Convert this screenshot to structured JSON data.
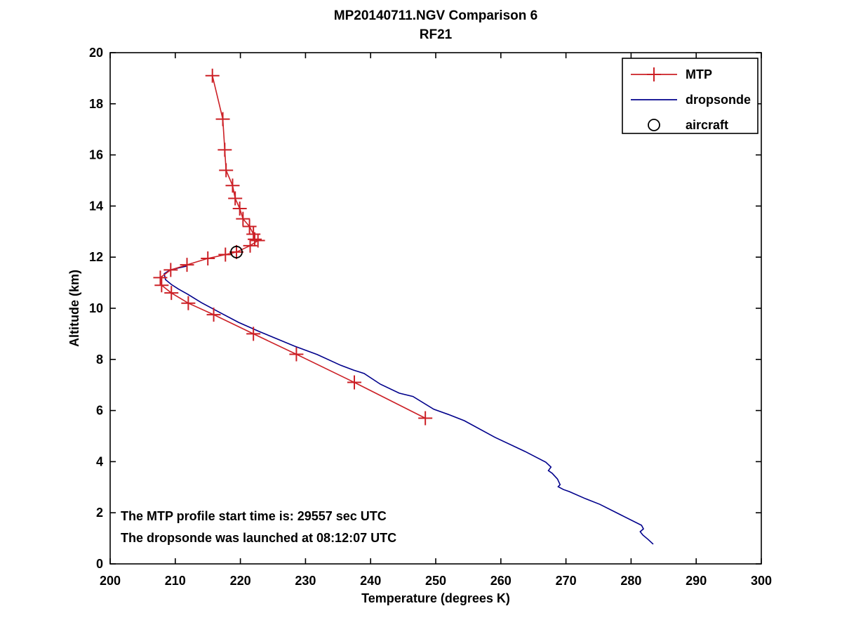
{
  "figure": {
    "background": "#ffffff"
  },
  "chart_data": {
    "type": "line",
    "title": "MP20140711.NGV Comparison 6",
    "subtitle": "RF21",
    "xlabel": "Temperature (degrees K)",
    "ylabel": "Altitude (km)",
    "xlim": [
      200,
      300
    ],
    "ylim": [
      0,
      20
    ],
    "xticks": [
      200,
      210,
      220,
      230,
      240,
      250,
      260,
      270,
      280,
      290,
      300
    ],
    "yticks": [
      0,
      2,
      4,
      6,
      8,
      10,
      12,
      14,
      16,
      18,
      20
    ],
    "grid": false,
    "box": true,
    "legend": {
      "position": "upper-right",
      "entries": [
        "MTP",
        "dropsonde",
        "aircraft"
      ]
    },
    "series": [
      {
        "name": "MTP",
        "style": "line+marker",
        "marker": "plus",
        "color": "#cc2026",
        "points": [
          [
            215.7,
            19.1
          ],
          [
            217.3,
            17.4
          ],
          [
            217.6,
            16.2
          ],
          [
            217.8,
            15.4
          ],
          [
            218.8,
            14.8
          ],
          [
            219.2,
            14.3
          ],
          [
            219.9,
            13.9
          ],
          [
            220.4,
            13.5
          ],
          [
            221.4,
            13.2
          ],
          [
            222.0,
            12.9
          ],
          [
            222.2,
            12.7
          ],
          [
            222.7,
            12.65
          ],
          [
            221.5,
            12.45
          ],
          [
            219.4,
            12.2
          ],
          [
            217.7,
            12.1
          ],
          [
            215.0,
            11.95
          ],
          [
            211.8,
            11.7
          ],
          [
            209.3,
            11.5
          ],
          [
            207.7,
            11.2
          ],
          [
            207.9,
            10.9
          ],
          [
            209.4,
            10.6
          ],
          [
            212.0,
            10.2
          ],
          [
            215.9,
            9.75
          ],
          [
            222.0,
            9.0
          ],
          [
            228.6,
            8.2
          ],
          [
            237.5,
            7.1
          ],
          [
            248.4,
            5.7
          ]
        ]
      },
      {
        "name": "dropsonde",
        "style": "line",
        "marker": "none",
        "color": "#00008b",
        "points": [
          [
            211.9,
            11.66
          ],
          [
            209.2,
            11.5
          ],
          [
            208.3,
            11.35
          ],
          [
            208.5,
            11.12
          ],
          [
            209.4,
            10.93
          ],
          [
            210.5,
            10.75
          ],
          [
            211.9,
            10.55
          ],
          [
            214.0,
            10.22
          ],
          [
            216.8,
            9.84
          ],
          [
            219.7,
            9.45
          ],
          [
            222.9,
            9.09
          ],
          [
            228.3,
            8.52
          ],
          [
            231.8,
            8.19
          ],
          [
            235.4,
            7.77
          ],
          [
            237.4,
            7.58
          ],
          [
            239.0,
            7.45
          ],
          [
            241.5,
            7.03
          ],
          [
            244.4,
            6.68
          ],
          [
            246.5,
            6.55
          ],
          [
            249.7,
            6.05
          ],
          [
            251.9,
            5.85
          ],
          [
            254.4,
            5.6
          ],
          [
            259.1,
            4.95
          ],
          [
            263.7,
            4.4
          ],
          [
            266.9,
            3.98
          ],
          [
            267.7,
            3.79
          ],
          [
            267.3,
            3.65
          ],
          [
            267.9,
            3.54
          ],
          [
            268.7,
            3.32
          ],
          [
            269.1,
            3.1
          ],
          [
            268.8,
            3.02
          ],
          [
            269.6,
            2.91
          ],
          [
            270.5,
            2.83
          ],
          [
            273.0,
            2.55
          ],
          [
            275.2,
            2.33
          ],
          [
            278.4,
            1.92
          ],
          [
            281.6,
            1.51
          ],
          [
            281.9,
            1.37
          ],
          [
            281.4,
            1.26
          ],
          [
            281.8,
            1.13
          ],
          [
            282.6,
            0.96
          ],
          [
            283.4,
            0.77
          ]
        ]
      },
      {
        "name": "aircraft",
        "style": "marker",
        "marker": "open-circle",
        "color": "#000000",
        "points": [
          [
            219.4,
            12.2
          ]
        ]
      }
    ],
    "annotations": [
      {
        "text": "The MTP profile start time is: 29557 sec UTC"
      },
      {
        "text": "The dropsonde was launched at 08:12:07 UTC"
      }
    ]
  }
}
